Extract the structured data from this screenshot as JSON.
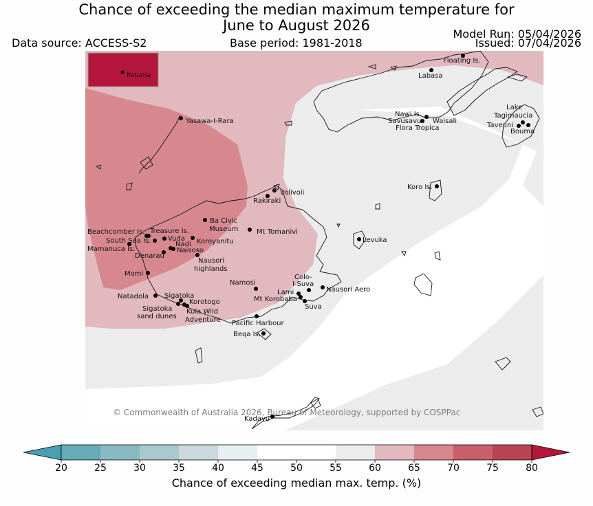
{
  "title": {
    "line1": "Chance of exceeding the median maximum temperature for",
    "line2": "June to August 2026"
  },
  "header": {
    "data_source": "Data source: ACCESS-S2",
    "base_period": "Base period: 1981-2018",
    "model_run": "Model Run: 05/04/2026",
    "issued": "Issued: 07/04/2026"
  },
  "inset": {
    "label": "Rotuma"
  },
  "copyright": "© Commonwealth of Australia 2026, Bureau of Meteorology, supported by COSPPac",
  "places": {
    "floating": "Floating Is.",
    "labasa": "Labasa",
    "yasawa": "Yasawa-I-Rara",
    "nawi": "Nawi Is.",
    "savusavu": "Savusavu",
    "waisali": "Waisali",
    "flora": "Flora Tropica",
    "lake": "Lake",
    "tagimaucia": "Tagimaucia",
    "taveuni": "Taveuni",
    "bouma": "Bouma",
    "koro": "Koro Is.",
    "volivoli": "Volivoli",
    "rakiraki": "Rakiraki",
    "bacivic": "Ba Civic",
    "museum": "Museum",
    "tomanivi": "Mt Tomanivi",
    "beachcomber": "Beachcomber Is.",
    "treasure": "Treasure Is.",
    "southsea": "South Sea Is.",
    "vuda": "Vuda",
    "koroyanitu": "Koroyanitu",
    "nadi": "Nadi",
    "mamanuca": "Mamanuca Is.",
    "naisoso": "Naisoso",
    "denarau": "Denarau",
    "nausori_hl": "Nausori",
    "highlands": "highlands",
    "levuka": "Levuka",
    "momi": "Momi",
    "namosi": "Namosi",
    "colo": "Colo-",
    "isuva": "I-Suva",
    "nausori_aero": "Nausori Aero",
    "lami": "Lami",
    "korobaba": "Mt Korobaba",
    "suva": "Suva",
    "natadola": "Natadola",
    "sigatoka": "Sigatoka",
    "korotogo": "Korotogo",
    "sigatoka_sand": "Sigatoka",
    "sand_dunes": "sand dunes",
    "kula": "Kula Wild",
    "adventure": "Adventure",
    "pacific": "Pacific Harbour",
    "beqa": "Beqa Is.",
    "kadavu": "Kadavu"
  },
  "colorbar": {
    "title": "Chance of exceeding median max. temp. (%)",
    "ticks": [
      "20",
      "25",
      "30",
      "35",
      "40",
      "45",
      "50",
      "55",
      "60",
      "65",
      "70",
      "75",
      "80"
    ],
    "colors": [
      "#4aa0b0",
      "#66abb9",
      "#89bac4",
      "#a9c9cd",
      "#cbd8dc",
      "#e8eff2",
      "#ffffff",
      "#ffffff",
      "#ececec",
      "#e1b9bf",
      "#d7888f",
      "#c95f69",
      "#b94350",
      "#b3163a"
    ]
  }
}
